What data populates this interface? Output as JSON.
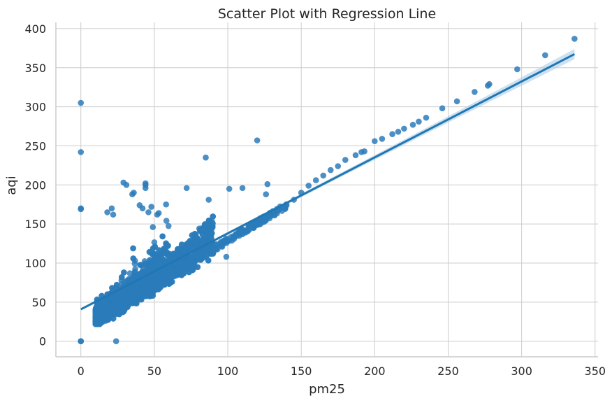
{
  "chart_data": {
    "type": "scatter",
    "title": "Scatter Plot with Regression Line",
    "xlabel": "pm25",
    "ylabel": "aqi",
    "xlim": [
      -17,
      352
    ],
    "ylim": [
      -20,
      408
    ],
    "xticks": [
      0,
      50,
      100,
      150,
      200,
      250,
      300,
      350
    ],
    "yticks": [
      0,
      50,
      100,
      150,
      200,
      250,
      300,
      350,
      400
    ],
    "grid": true,
    "colors": {
      "points": "#2b7bba",
      "line": "#1f77b4",
      "band": "#aecde6"
    },
    "series": [
      {
        "kind": "points",
        "points": [
          [
            0,
            305
          ],
          [
            0,
            242
          ],
          [
            0,
            170
          ],
          [
            0,
            169
          ],
          [
            0,
            0
          ],
          [
            0,
            0
          ],
          [
            24,
            0
          ],
          [
            18,
            165
          ],
          [
            21,
            170
          ],
          [
            22,
            162
          ],
          [
            29,
            203
          ],
          [
            31,
            200
          ],
          [
            36,
            190
          ],
          [
            35,
            188
          ],
          [
            44,
            200
          ],
          [
            44,
            202
          ],
          [
            44,
            196
          ],
          [
            40,
            174
          ],
          [
            42,
            170
          ],
          [
            46,
            165
          ],
          [
            48,
            172
          ],
          [
            52,
            162
          ],
          [
            53,
            164
          ],
          [
            58,
            175
          ],
          [
            49,
            146
          ],
          [
            72,
            196
          ],
          [
            85,
            235
          ],
          [
            87,
            181
          ],
          [
            120,
            257
          ],
          [
            101,
            195
          ],
          [
            110,
            196
          ],
          [
            127,
            201
          ],
          [
            126,
            188
          ],
          [
            99,
            108
          ],
          [
            140,
            174
          ],
          [
            145,
            181
          ],
          [
            150,
            190
          ],
          [
            155,
            199
          ],
          [
            160,
            206
          ],
          [
            165,
            212
          ],
          [
            170,
            219
          ],
          [
            175,
            224
          ],
          [
            180,
            232
          ],
          [
            187,
            238
          ],
          [
            191,
            242
          ],
          [
            193,
            243
          ],
          [
            200,
            256
          ],
          [
            205,
            259
          ],
          [
            212,
            265
          ],
          [
            216,
            268
          ],
          [
            220,
            272
          ],
          [
            226,
            277
          ],
          [
            230,
            281
          ],
          [
            235,
            286
          ],
          [
            246,
            298
          ],
          [
            256,
            307
          ],
          [
            268,
            319
          ],
          [
            277,
            327
          ],
          [
            278,
            329
          ],
          [
            297,
            348
          ],
          [
            316,
            366
          ],
          [
            336,
            387
          ]
        ]
      },
      {
        "kind": "regression",
        "intercept": 40.8,
        "slope": 0.972,
        "x_range": [
          0,
          336
        ]
      }
    ]
  }
}
